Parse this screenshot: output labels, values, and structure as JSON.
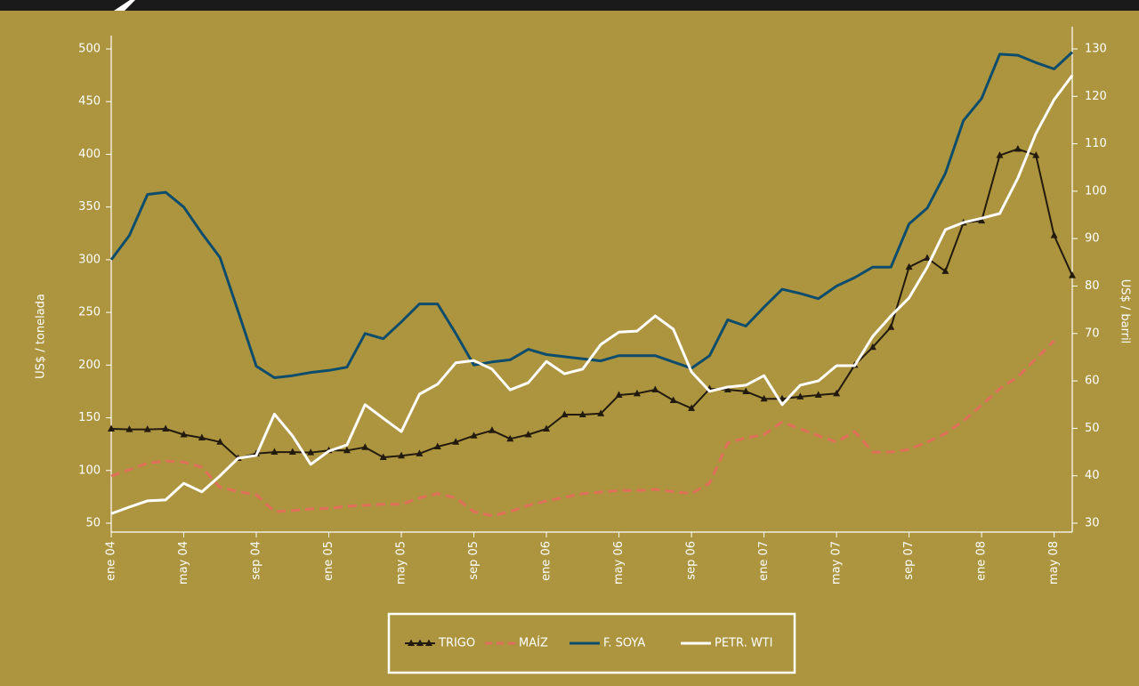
{
  "chart_data": {
    "type": "line",
    "y_label": "US$ / tonelada",
    "y2_label": "US$ / barril",
    "categories": [
      "ene 04",
      null,
      null,
      null,
      "may 04",
      null,
      null,
      null,
      "sep 04",
      null,
      null,
      null,
      "ene 05",
      null,
      null,
      null,
      "may 05",
      null,
      null,
      null,
      "sep 05",
      null,
      null,
      null,
      "ene 06",
      null,
      null,
      null,
      "may 06",
      null,
      null,
      null,
      "sep 06",
      null,
      null,
      null,
      "ene 07",
      null,
      null,
      null,
      "may 07",
      null,
      null,
      null,
      "sep 07",
      null,
      null,
      null,
      "ene 08",
      null,
      null,
      null,
      "may 08",
      null
    ],
    "ylim": [
      50,
      500
    ],
    "yticks": [
      50,
      100,
      150,
      200,
      250,
      300,
      350,
      400,
      450,
      500
    ],
    "y2lim": [
      30,
      130
    ],
    "y2ticks": [
      30,
      40,
      50,
      60,
      70,
      80,
      90,
      100,
      110,
      120,
      130
    ],
    "legend": "bottom",
    "series": [
      {
        "name": "TRIGO",
        "color": "#231a0e",
        "marker": "triangle",
        "values": [
          139.5,
          139,
          139,
          139.5,
          134,
          131,
          127,
          111.6,
          116,
          117.5,
          117.5,
          117,
          119,
          119,
          122,
          112.5,
          114,
          116,
          122.6,
          127,
          133,
          138,
          130,
          134,
          139.5,
          153,
          153,
          154,
          171.6,
          173,
          176.6,
          166.5,
          159,
          177.5,
          176.6,
          175,
          168,
          168,
          170,
          171.6,
          173,
          200,
          217,
          236,
          293,
          301.6,
          289,
          335,
          337,
          399,
          405,
          399,
          323,
          285
        ]
      },
      {
        "name": "MAÍZ",
        "color": "#e0705a",
        "dash": true,
        "values": [
          94.7,
          100.7,
          107,
          109,
          108,
          103,
          84,
          80,
          77,
          61,
          62,
          63.5,
          64,
          66,
          67,
          68,
          68,
          74,
          78,
          74,
          61,
          57,
          61,
          67,
          71,
          74.5,
          78,
          79.5,
          81,
          81,
          82,
          80,
          78,
          88,
          126,
          131,
          134,
          146,
          139.5,
          133,
          127,
          137,
          117.5,
          117.5,
          120,
          127,
          135,
          147,
          162,
          177.5,
          189,
          206,
          223,
          null
        ]
      },
      {
        "name": "F. SOYA",
        "color": "#0d4d6b",
        "values": [
          300,
          323,
          362,
          364,
          350,
          325,
          302,
          251,
          199,
          188,
          190,
          193,
          195,
          198,
          230,
          225,
          241,
          258,
          258,
          230,
          200,
          203,
          205,
          215,
          210,
          208,
          206,
          204,
          209,
          209,
          209,
          203,
          197,
          209,
          243,
          237,
          255,
          272,
          268,
          263,
          275,
          283,
          293,
          293,
          334,
          349,
          382,
          432,
          453,
          495,
          494,
          487,
          481,
          497
        ]
      },
      {
        "name": "PETR. WTI",
        "color": "#ffffff",
        "axis": "y2",
        "values": [
          32,
          33.4,
          34.7,
          34.9,
          38.4,
          36.6,
          40,
          43.7,
          44.3,
          53,
          48.4,
          42.4,
          45.2,
          46.5,
          55,
          52.1,
          49.3,
          57.2,
          59.3,
          63.8,
          64.3,
          62.5,
          58.1,
          59.6,
          64.1,
          61.5,
          62.5,
          67.7,
          70.3,
          70.5,
          73.7,
          70.9,
          61.9,
          57.8,
          58.7,
          59.1,
          61.1,
          55,
          59.1,
          60,
          63.2,
          63.2,
          69.4,
          73.7,
          77.5,
          84,
          91.9,
          93.4,
          94.3,
          95.3,
          102.8,
          112.2,
          119.3,
          124.4
        ]
      }
    ]
  }
}
